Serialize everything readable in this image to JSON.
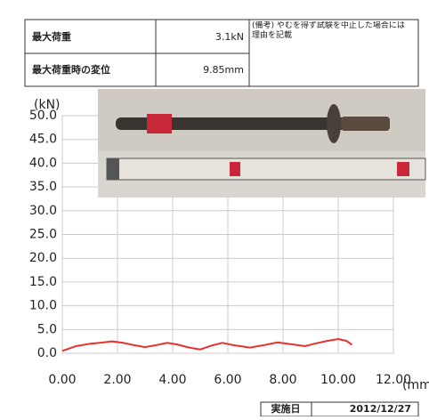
{
  "table": {
    "rows": [
      [
        "最大荷重",
        "3.1kN"
      ],
      [
        "最大荷重時の変位",
        "9.85mm"
      ]
    ],
    "note": "(備考) やむを得ず試験を中止した場合には理由を記載"
  },
  "chart_data": {
    "type": "line",
    "ylabel": "(kN)",
    "xlabel": "(mm)",
    "xlim": [
      0,
      12
    ],
    "ylim": [
      0,
      50
    ],
    "xticks": [
      {
        "value": 0,
        "label": "0.00"
      },
      {
        "value": 2,
        "label": "2.00"
      },
      {
        "value": 4,
        "label": "4.00"
      },
      {
        "value": 6,
        "label": "6.00"
      },
      {
        "value": 8,
        "label": "8.00"
      },
      {
        "value": 10,
        "label": "10.00"
      },
      {
        "value": 12,
        "label": "12.00"
      }
    ],
    "yticks": [
      {
        "value": 0,
        "label": "0.0"
      },
      {
        "value": 5,
        "label": "5.0"
      },
      {
        "value": 10,
        "label": "10.0"
      },
      {
        "value": 15,
        "label": "15.0"
      },
      {
        "value": 20,
        "label": "20.0"
      },
      {
        "value": 25,
        "label": "25.0"
      },
      {
        "value": 30,
        "label": "30.0"
      },
      {
        "value": 35,
        "label": "35.0"
      },
      {
        "value": 40,
        "label": "40.0"
      },
      {
        "value": 45,
        "label": "45.0"
      },
      {
        "value": 50,
        "label": "50.0"
      }
    ],
    "grid": true,
    "color": "#e8322b",
    "x": [
      0,
      0.5,
      1,
      1.5,
      1.8,
      2.2,
      2.6,
      3,
      3.4,
      3.8,
      4.2,
      4.6,
      5,
      5.4,
      5.8,
      6.2,
      6.8,
      7.3,
      7.8,
      8.3,
      8.8,
      9.2,
      9.6,
      10,
      10.3,
      10.5
    ],
    "values": [
      0.5,
      1.5,
      2,
      2.3,
      2.5,
      2.2,
      1.7,
      1.3,
      1.7,
      2.2,
      1.8,
      1.2,
      0.8,
      1.6,
      2.2,
      1.7,
      1.2,
      1.7,
      2.3,
      1.9,
      1.5,
      2.1,
      2.6,
      3,
      2.6,
      1.8
    ]
  },
  "footer": {
    "label": "実施日",
    "date": "2012/12/27"
  }
}
